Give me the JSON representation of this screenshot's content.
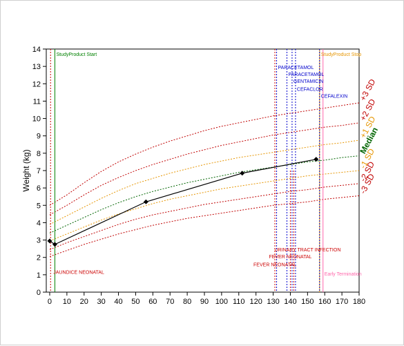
{
  "chart_data": {
    "type": "line",
    "title": "",
    "xlabel": "",
    "ylabel": "Weight (kg)",
    "xlim": [
      -2,
      180
    ],
    "ylim": [
      0,
      14
    ],
    "xticks": [
      0,
      10,
      20,
      30,
      40,
      50,
      60,
      70,
      80,
      90,
      100,
      110,
      120,
      130,
      140,
      150,
      160,
      170,
      180
    ],
    "yticks": [
      0,
      1,
      2,
      3,
      4,
      5,
      6,
      7,
      8,
      9,
      10,
      11,
      12,
      13,
      14
    ],
    "grid": false,
    "series": [
      {
        "name": "",
        "role": "patient",
        "color": "#000000",
        "x": [
          0,
          3,
          56,
          112,
          155
        ],
        "y": [
          2.95,
          2.75,
          5.2,
          6.85,
          7.65
        ]
      }
    ],
    "reference_curves": {
      "x": [
        0,
        10,
        20,
        30,
        40,
        50,
        60,
        70,
        80,
        90,
        100,
        110,
        120,
        130,
        140,
        150,
        160,
        170,
        180
      ],
      "curves": [
        {
          "label": "+3 SD",
          "color": "#c00000",
          "values": [
            5.0,
            5.6,
            6.3,
            6.95,
            7.5,
            7.95,
            8.35,
            8.7,
            9.0,
            9.3,
            9.55,
            9.75,
            9.95,
            10.15,
            10.3,
            10.45,
            10.6,
            10.75,
            10.9
          ]
        },
        {
          "label": "+2 SD",
          "color": "#c00000",
          "values": [
            4.45,
            5.0,
            5.6,
            6.15,
            6.6,
            7.0,
            7.35,
            7.65,
            7.95,
            8.2,
            8.45,
            8.65,
            8.85,
            9.05,
            9.2,
            9.35,
            9.5,
            9.6,
            9.75
          ]
        },
        {
          "label": "+1 SD",
          "color": "#e69500",
          "values": [
            3.9,
            4.4,
            4.9,
            5.4,
            5.85,
            6.25,
            6.55,
            6.85,
            7.1,
            7.35,
            7.55,
            7.75,
            7.9,
            8.05,
            8.2,
            8.35,
            8.5,
            8.6,
            8.75
          ]
        },
        {
          "label": "Median",
          "color": "#006400",
          "values": [
            3.4,
            3.85,
            4.3,
            4.75,
            5.15,
            5.5,
            5.8,
            6.05,
            6.3,
            6.5,
            6.7,
            6.9,
            7.05,
            7.2,
            7.35,
            7.5,
            7.6,
            7.75,
            7.85
          ]
        },
        {
          "label": "-1 SD",
          "color": "#e69500",
          "values": [
            2.95,
            3.35,
            3.75,
            4.15,
            4.5,
            4.8,
            5.1,
            5.35,
            5.55,
            5.75,
            5.95,
            6.1,
            6.25,
            6.4,
            6.55,
            6.7,
            6.8,
            6.9,
            7.0
          ]
        },
        {
          "label": "-2 SD",
          "color": "#c00000",
          "values": [
            2.45,
            2.85,
            3.2,
            3.55,
            3.9,
            4.2,
            4.45,
            4.65,
            4.85,
            5.05,
            5.2,
            5.35,
            5.5,
            5.65,
            5.8,
            5.9,
            6.05,
            6.15,
            6.25
          ]
        },
        {
          "label": "-3 SD",
          "color": "#c00000",
          "values": [
            2.05,
            2.4,
            2.75,
            3.05,
            3.35,
            3.6,
            3.85,
            4.05,
            4.25,
            4.4,
            4.55,
            4.7,
            4.85,
            5.0,
            5.1,
            5.2,
            5.35,
            5.45,
            5.55
          ]
        }
      ]
    },
    "markers": [
      {
        "text": "StudyProduct Start",
        "x": 3,
        "y_label": 13.6,
        "color": "#008000",
        "style": "solid"
      },
      {
        "text": "StudyProduct Stop",
        "x": 157,
        "y_label": 13.6,
        "color": "#e69500",
        "style": "solid"
      },
      {
        "text": "Early Termination",
        "x": 159,
        "y_label": 0.95,
        "color": "#ff66aa",
        "style": "solid"
      }
    ],
    "medication_lines": [
      {
        "text": "PARACETAMOL",
        "x": 132,
        "y_label": 12.85
      },
      {
        "text": "PARACETAMOL",
        "x": 138,
        "y_label": 12.45
      },
      {
        "text": "GENTAMICIN",
        "x": 141,
        "y_label": 12.05
      },
      {
        "text": "CEFACLOR",
        "x": 143,
        "y_label": 11.6
      },
      {
        "text": "CEFALEXIN",
        "x": 157,
        "y_label": 11.2
      }
    ],
    "event_lines": [
      {
        "text": "JAUNDICE NEONATAL",
        "x": 0.5,
        "y_label": 1.05,
        "y_top": 14
      },
      {
        "text": "URINARY TRACT INFECTION",
        "x": 142,
        "y_label": 2.35,
        "y_top": 7.0
      },
      {
        "text": "FEVER NEONATAL",
        "x": 140,
        "y_label": 1.95,
        "y_top": 7.0
      },
      {
        "text": "FEVER NEONATAL",
        "x": 131,
        "y_label": 1.5,
        "y_top": 14
      }
    ],
    "colors": {
      "medication": "#0000cc",
      "event": "#cc0000",
      "patient": "#000000"
    }
  }
}
